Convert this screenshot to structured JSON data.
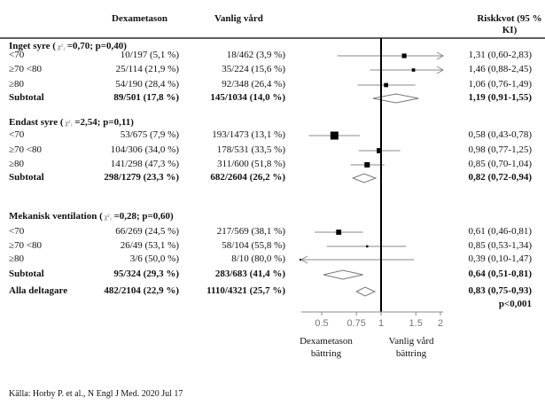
{
  "chart_data": {
    "type": "forest",
    "headers": {
      "dex": "Dexametason",
      "usual": "Vanlig vård",
      "rr": "Riskkvot (95 %",
      "rr2": "KI)"
    },
    "xscale": "log",
    "xlim": [
      0.39,
      2.06
    ],
    "xticks": [
      "0.5",
      "0.75",
      "1",
      "1.5",
      "2"
    ],
    "xtick_values": [
      0.5,
      0.75,
      1,
      1.5,
      2
    ],
    "xlabel_left": [
      "Dexametason",
      "bättring"
    ],
    "xlabel_right": [
      "Vanlig vård",
      "bättring"
    ],
    "groups": [
      {
        "title": "Inget syre (",
        "stat": "=0,70; p=0,40)",
        "rows": [
          {
            "label": "<70",
            "dex": "10/197 (5,1 %)",
            "usual": "18/462 (3,9 %)",
            "text": "1,31 (0,60-2,83)",
            "rr": 1.31,
            "lo": 0.6,
            "hi": 2.83,
            "n": 659
          },
          {
            "label": "≥70 <80",
            "dex": "25/114 (21,9 %)",
            "usual": "35/224 (15,6 %)",
            "text": "1,46 (0,88-2,45)",
            "rr": 1.46,
            "lo": 0.88,
            "hi": 2.45,
            "n": 338
          },
          {
            "label": "≥80",
            "dex": "54/190 (28,4 %)",
            "usual": "92/348 (26,4 %)",
            "text": "1,06 (0,76-1,49)",
            "rr": 1.06,
            "lo": 0.76,
            "hi": 1.49,
            "n": 538
          }
        ],
        "subtotal": {
          "label": "Subtotal",
          "dex": "89/501 (17,8 %)",
          "usual": "145/1034 (14,0 %)",
          "text": "1,19 (0,91-1,55)",
          "rr": 1.19,
          "lo": 0.91,
          "hi": 1.55
        }
      },
      {
        "title": "Endast syre (",
        "stat": "=2,54; p=0,11)",
        "rows": [
          {
            "label": "<70",
            "dex": "53/675 (7,9 %)",
            "usual": "193/1473 (13,1 %)",
            "text": "0,58 (0,43-0,78)",
            "rr": 0.58,
            "lo": 0.43,
            "hi": 0.78,
            "n": 2148
          },
          {
            "label": "≥70 <80",
            "dex": "104/306 (34,0 %)",
            "usual": "178/531 (33,5 %)",
            "text": "0,98 (0,77-1,25)",
            "rr": 0.98,
            "lo": 0.77,
            "hi": 1.25,
            "n": 837
          },
          {
            "label": "≥80",
            "dex": "141/298 (47,3 %)",
            "usual": "311/600 (51,8 %)",
            "text": "0,85 (0,70-1,04)",
            "rr": 0.85,
            "lo": 0.7,
            "hi": 1.04,
            "n": 898
          }
        ],
        "subtotal": {
          "label": "Subtotal",
          "dex": "298/1279 (23,3 %)",
          "usual": "682/2604 (26,2 %)",
          "text": "0,82 (0,72-0,94)",
          "rr": 0.82,
          "lo": 0.72,
          "hi": 0.94
        }
      },
      {
        "title": "Mekanisk ventilation (",
        "stat": "=0,28; p=0,60)",
        "rows": [
          {
            "label": "<70",
            "dex": "66/269 (24,5 %)",
            "usual": "217/569 (38,1 %)",
            "text": "0,61 (0,46-0,81)",
            "rr": 0.61,
            "lo": 0.46,
            "hi": 0.81,
            "n": 838
          },
          {
            "label": "≥70 <80",
            "dex": "26/49 (53,1 %)",
            "usual": "58/104 (55,8 %)",
            "text": "0,85 (0,53-1,34)",
            "rr": 0.85,
            "lo": 0.53,
            "hi": 1.34,
            "n": 153
          },
          {
            "label": "≥80",
            "dex": "3/6 (50,0 %)",
            "usual": "8/10 (80,0 %)",
            "text": "0,39 (0,10-1,47)",
            "rr": 0.39,
            "lo": 0.1,
            "hi": 1.47,
            "n": 16
          }
        ],
        "subtotal": {
          "label": "Subtotal",
          "dex": "95/324 (29,3 %)",
          "usual": "283/683 (41,4 %)",
          "text": "0,64 (0,51-0,81)",
          "rr": 0.64,
          "lo": 0.51,
          "hi": 0.81
        }
      }
    ],
    "overall": {
      "label": "Alla deltagare",
      "dex": "482/2104 (22,9 %)",
      "usual": "1110/4321 (25,7 %)",
      "text": "0,83 (0,75-0,93)",
      "p": "p<0,001",
      "rr": 0.83,
      "lo": 0.75,
      "hi": 0.93
    },
    "chi_symbol": "χ²₁",
    "source": "Källa: Horby P. et al., N Engl J Med. 2020 Jul 17"
  }
}
